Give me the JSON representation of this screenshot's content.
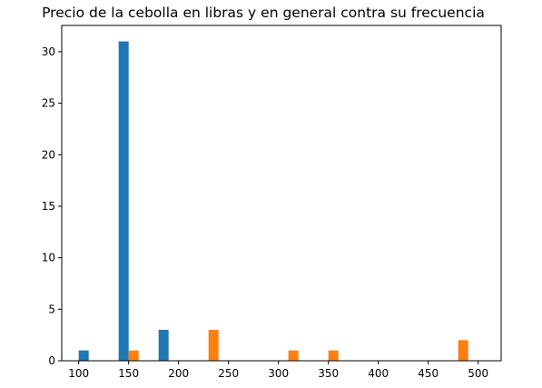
{
  "chart_data": {
    "type": "bar",
    "title": "Precio de la cebolla en libras y en general contra su frecuencia",
    "xlabel": "",
    "ylabel": "",
    "xlim": [
      83,
      523
    ],
    "ylim": [
      0,
      32.55
    ],
    "x_ticks": [
      100,
      150,
      200,
      250,
      300,
      350,
      400,
      450,
      500
    ],
    "y_ticks": [
      0,
      5,
      10,
      15,
      20,
      25,
      30
    ],
    "grid": false,
    "series": [
      {
        "color": "#1f77b4",
        "bars": [
          {
            "x0": 100,
            "x1": 110,
            "value": 1
          },
          {
            "x0": 140,
            "x1": 150,
            "value": 31
          },
          {
            "x0": 180,
            "x1": 190,
            "value": 3
          }
        ]
      },
      {
        "color": "#ff7f0e",
        "bars": [
          {
            "x0": 150,
            "x1": 160,
            "value": 1
          },
          {
            "x0": 230,
            "x1": 240,
            "value": 3
          },
          {
            "x0": 310,
            "x1": 320,
            "value": 1
          },
          {
            "x0": 350,
            "x1": 360,
            "value": 1
          },
          {
            "x0": 480,
            "x1": 490,
            "value": 2
          }
        ]
      }
    ]
  }
}
